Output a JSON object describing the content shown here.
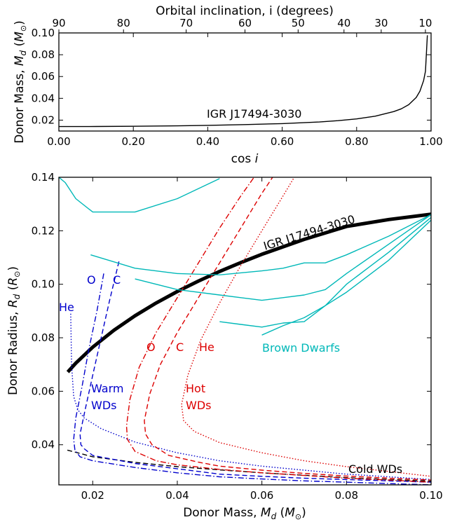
{
  "chart_data": [
    {
      "type": "line",
      "xlabel": "cos i",
      "ylabel": "Donor Mass, Md (M⊙)",
      "top_xlabel": "Orbital inclination, i (degrees)",
      "xlim": [
        0.0,
        1.0
      ],
      "ylim": [
        0.01,
        0.1
      ],
      "x_ticks": [
        "0.00",
        "0.20",
        "0.40",
        "0.60",
        "0.80",
        "1.00"
      ],
      "y_ticks": [
        "0.02",
        "0.04",
        "0.06",
        "0.08",
        "0.10"
      ],
      "top_ticks": [
        "90",
        "80",
        "70",
        "60",
        "50",
        "40",
        "30",
        "10"
      ],
      "annotations": [
        "IGR J17494-3030"
      ],
      "series": [
        {
          "color": "#000000",
          "style": "solid",
          "x": [
            0.0,
            0.1,
            0.2,
            0.3,
            0.4,
            0.5,
            0.6,
            0.7,
            0.75,
            0.8,
            0.85,
            0.9,
            0.92,
            0.94,
            0.96,
            0.97,
            0.98,
            0.985,
            0.99
          ],
          "y": [
            0.0141,
            0.0142,
            0.0144,
            0.0147,
            0.0152,
            0.0159,
            0.0168,
            0.0183,
            0.0195,
            0.0211,
            0.0236,
            0.0279,
            0.0304,
            0.0342,
            0.0408,
            0.0466,
            0.0564,
            0.0649,
            0.0978
          ]
        }
      ]
    },
    {
      "type": "line",
      "xlabel": "Donor Mass, Md (M⊙)",
      "ylabel": "Donor Radius, Rd (R⊙)",
      "xlim": [
        0.012,
        0.1
      ],
      "ylim": [
        0.025,
        0.14
      ],
      "x_ticks": [
        "0.02",
        "0.04",
        "0.06",
        "0.08",
        "0.10"
      ],
      "y_ticks": [
        "0.04",
        "0.06",
        "0.08",
        "0.10",
        "0.12",
        "0.14"
      ],
      "annotations": {
        "igr": "IGR J17494-3030",
        "brown_dwarfs": "Brown Dwarfs",
        "cold_wds": "Cold WDs",
        "warm_wds_1": "Warm",
        "warm_wds_2": "WDs",
        "hot_wds_1": "Hot",
        "hot_wds_2": "WDs",
        "warm_he": "He",
        "warm_o": "O",
        "warm_c": "C",
        "hot_o": "O",
        "hot_c": "C",
        "hot_he": "He"
      },
      "series": [
        {
          "color": "#000000",
          "style": "thick",
          "x": [
            0.0141,
            0.016,
            0.02,
            0.025,
            0.03,
            0.035,
            0.04,
            0.045,
            0.05,
            0.055,
            0.06,
            0.07,
            0.08,
            0.09,
            0.1
          ],
          "y": [
            0.0672,
            0.0705,
            0.0765,
            0.0828,
            0.0882,
            0.093,
            0.0973,
            0.1012,
            0.1048,
            0.1081,
            0.1112,
            0.1168,
            0.1216,
            0.1242,
            0.1262
          ]
        },
        {
          "color": "#000000",
          "style": "dashed",
          "x": [
            0.014,
            0.02,
            0.03,
            0.04,
            0.05,
            0.06,
            0.07,
            0.08,
            0.09,
            0.1
          ],
          "y": [
            0.038,
            0.0355,
            0.0334,
            0.0318,
            0.0306,
            0.0295,
            0.0286,
            0.0277,
            0.027,
            0.0264
          ]
        },
        {
          "color": "#0000cc",
          "style": "dotted",
          "x": [
            0.0148,
            0.015,
            0.0155,
            0.0165,
            0.018,
            0.022,
            0.03,
            0.04,
            0.05,
            0.06,
            0.07,
            0.08,
            0.09,
            0.1
          ],
          "y": [
            0.089,
            0.07,
            0.058,
            0.053,
            0.05,
            0.046,
            0.041,
            0.037,
            0.034,
            0.032,
            0.0305,
            0.029,
            0.028,
            0.027
          ]
        },
        {
          "color": "#0000cc",
          "style": "dashdot",
          "x": [
            0.0226,
            0.021,
            0.019,
            0.0175,
            0.016,
            0.0155,
            0.0158,
            0.017,
            0.02,
            0.03,
            0.04,
            0.05,
            0.06,
            0.07,
            0.08,
            0.09,
            0.1
          ],
          "y": [
            0.104,
            0.09,
            0.075,
            0.062,
            0.05,
            0.042,
            0.038,
            0.0355,
            0.034,
            0.0315,
            0.0295,
            0.028,
            0.0272,
            0.0265,
            0.026,
            0.0255,
            0.025
          ]
        },
        {
          "color": "#0000cc",
          "style": "dashed",
          "x": [
            0.0262,
            0.024,
            0.022,
            0.02,
            0.0182,
            0.017,
            0.0172,
            0.018,
            0.02,
            0.03,
            0.04,
            0.05,
            0.06,
            0.07,
            0.08,
            0.09,
            0.1
          ],
          "y": [
            0.1085,
            0.094,
            0.08,
            0.066,
            0.053,
            0.044,
            0.04,
            0.0385,
            0.036,
            0.033,
            0.031,
            0.029,
            0.0282,
            0.0275,
            0.027,
            0.0265,
            0.026
          ]
        },
        {
          "color": "#dd0000",
          "style": "dashdot",
          "x": [
            0.0595,
            0.055,
            0.05,
            0.045,
            0.04,
            0.035,
            0.031,
            0.0288,
            0.028,
            0.0282,
            0.03,
            0.035,
            0.04,
            0.05,
            0.06,
            0.07,
            0.08,
            0.09,
            0.1
          ],
          "y": [
            0.143,
            0.133,
            0.121,
            0.108,
            0.095,
            0.082,
            0.069,
            0.057,
            0.047,
            0.042,
            0.0375,
            0.034,
            0.0325,
            0.0308,
            0.0295,
            0.0285,
            0.0275,
            0.0268,
            0.026
          ]
        },
        {
          "color": "#dd0000",
          "style": "dashed",
          "x": [
            0.0638,
            0.06,
            0.055,
            0.05,
            0.045,
            0.04,
            0.036,
            0.0335,
            0.0322,
            0.0325,
            0.034,
            0.038,
            0.045,
            0.05,
            0.06,
            0.07,
            0.08,
            0.09,
            0.1
          ],
          "y": [
            0.143,
            0.134,
            0.121,
            0.108,
            0.095,
            0.082,
            0.07,
            0.059,
            0.049,
            0.044,
            0.04,
            0.036,
            0.0335,
            0.032,
            0.0305,
            0.0293,
            0.0283,
            0.0275,
            0.0268
          ]
        },
        {
          "color": "#dd0000",
          "style": "dotted",
          "x": [
            0.0688,
            0.065,
            0.06,
            0.055,
            0.05,
            0.0455,
            0.0425,
            0.041,
            0.0415,
            0.044,
            0.05,
            0.06,
            0.07,
            0.08,
            0.09,
            0.1
          ],
          "y": [
            0.143,
            0.133,
            0.12,
            0.107,
            0.093,
            0.079,
            0.066,
            0.055,
            0.049,
            0.045,
            0.0408,
            0.037,
            0.034,
            0.0318,
            0.03,
            0.0282
          ]
        },
        {
          "color": "#00b8b8",
          "style": "solid",
          "x": [
            0.012,
            0.0135,
            0.016,
            0.02,
            0.025,
            0.03,
            0.04,
            0.05
          ],
          "y": [
            0.14,
            0.138,
            0.132,
            0.127,
            0.127,
            0.127,
            0.132,
            0.1395
          ]
        },
        {
          "color": "#00b8b8",
          "style": "solid",
          "x": [
            0.0195,
            0.03,
            0.04,
            0.05,
            0.06,
            0.065,
            0.07,
            0.075,
            0.08,
            0.09,
            0.1
          ],
          "y": [
            0.111,
            0.106,
            0.104,
            0.1035,
            0.105,
            0.106,
            0.108,
            0.108,
            0.111,
            0.118,
            0.126
          ]
        },
        {
          "color": "#00b8b8",
          "style": "solid",
          "x": [
            0.03,
            0.04,
            0.05,
            0.055,
            0.06,
            0.065,
            0.07,
            0.075,
            0.08,
            0.09,
            0.1
          ],
          "y": [
            0.102,
            0.098,
            0.096,
            0.095,
            0.094,
            0.095,
            0.096,
            0.098,
            0.104,
            0.115,
            0.126
          ]
        },
        {
          "color": "#00b8b8",
          "style": "solid",
          "x": [
            0.05,
            0.055,
            0.06,
            0.065,
            0.07,
            0.075,
            0.08,
            0.09,
            0.1
          ],
          "y": [
            0.086,
            0.085,
            0.084,
            0.0855,
            0.086,
            0.092,
            0.1,
            0.112,
            0.125
          ]
        },
        {
          "color": "#00b8b8",
          "style": "solid",
          "x": [
            0.06,
            0.065,
            0.07,
            0.075,
            0.08,
            0.09,
            0.1
          ],
          "y": [
            0.081,
            0.0845,
            0.0875,
            0.092,
            0.097,
            0.109,
            0.124
          ]
        }
      ]
    }
  ]
}
